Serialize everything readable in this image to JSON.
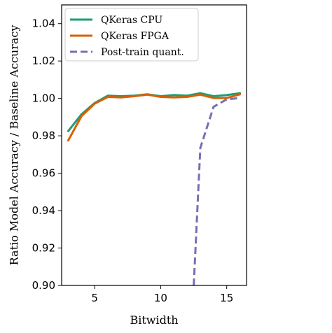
{
  "chart_data": {
    "type": "line",
    "xlabel": "Bitwidth",
    "ylabel": "Ratio Model Accuracy / Baseline Accuracy",
    "xlim": [
      2.5,
      16.5
    ],
    "ylim": [
      0.9,
      1.05
    ],
    "xticks": [
      5,
      10,
      15
    ],
    "xtick_labels": [
      "5",
      "10",
      "15"
    ],
    "yticks": [
      0.9,
      0.92,
      0.94,
      0.96,
      0.98,
      1.0,
      1.02,
      1.04
    ],
    "ytick_labels": [
      "0.90",
      "0.92",
      "0.94",
      "0.96",
      "0.98",
      "1.00",
      "1.02",
      "1.04"
    ],
    "grid": false,
    "legend_position": "top-left",
    "series": [
      {
        "name": "QKeras CPU",
        "color": "#1b9e77",
        "style": "solid",
        "x": [
          3,
          4,
          5,
          6,
          7,
          8,
          9,
          10,
          11,
          12,
          13,
          14,
          15,
          16
        ],
        "y": [
          0.9825,
          0.9915,
          0.9975,
          1.0015,
          1.0012,
          1.0015,
          1.0022,
          1.0012,
          1.0018,
          1.0015,
          1.0028,
          1.0012,
          1.0018,
          1.0028
        ]
      },
      {
        "name": "QKeras FPGA",
        "color": "#d95f02",
        "style": "solid",
        "x": [
          3,
          4,
          5,
          6,
          7,
          8,
          9,
          10,
          11,
          12,
          13,
          14,
          15,
          16
        ],
        "y": [
          0.9775,
          0.9905,
          0.9972,
          1.0008,
          1.0005,
          1.0012,
          1.002,
          1.0008,
          1.0005,
          1.0008,
          1.002,
          1.0002,
          1.0002,
          1.0022
        ]
      },
      {
        "name": "Post-train quant.",
        "color": "#7570b3",
        "style": "dashed",
        "x": [
          12.5,
          13,
          14,
          15,
          16
        ],
        "y": [
          0.9,
          0.9735,
          0.9955,
          0.9995,
          1.0002
        ]
      }
    ]
  }
}
